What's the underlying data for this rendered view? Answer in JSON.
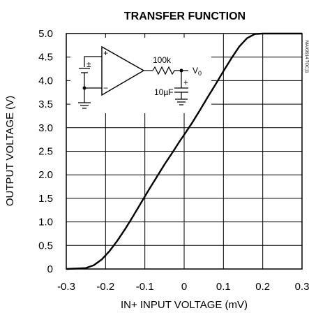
{
  "chart_data": {
    "type": "line",
    "title": "TRANSFER FUNCTION",
    "xlabel": "IN+ INPUT VOLTAGE (mV)",
    "ylabel": "OUTPUT VOLTAGE (V)",
    "xlim": [
      -0.3,
      0.3
    ],
    "ylim": [
      0,
      5.0
    ],
    "grid": true,
    "x_ticks": [
      -0.3,
      -0.2,
      -0.1,
      0,
      0.1,
      0.2,
      0.3
    ],
    "x_tick_labels": [
      "-0.3",
      "-0.2",
      "-0.1",
      "0",
      "0.1",
      "0.2",
      "0.3"
    ],
    "y_ticks": [
      0,
      0.5,
      1.0,
      1.5,
      2.0,
      2.5,
      3.0,
      3.5,
      4.0,
      4.5,
      5.0
    ],
    "y_tick_labels": [
      "0",
      "0.5",
      "1.0",
      "1.5",
      "2.0",
      "2.5",
      "3.0",
      "3.5",
      "4.0",
      "4.5",
      "5.0"
    ],
    "series": [
      {
        "x": [
          -0.3,
          -0.25,
          -0.23,
          -0.21,
          -0.19,
          -0.17,
          -0.15,
          -0.13,
          -0.11,
          -0.09,
          -0.07,
          -0.05,
          -0.03,
          -0.01,
          0.0,
          0.02,
          0.04,
          0.06,
          0.08,
          0.1,
          0.12,
          0.14,
          0.16,
          0.18,
          0.2,
          0.3
        ],
        "y": [
          0.0,
          0.02,
          0.08,
          0.2,
          0.38,
          0.6,
          0.85,
          1.12,
          1.4,
          1.68,
          1.95,
          2.22,
          2.47,
          2.73,
          2.85,
          3.1,
          3.37,
          3.65,
          3.92,
          4.2,
          4.47,
          4.72,
          4.9,
          4.99,
          5.0,
          5.0
        ]
      }
    ],
    "annotations": {
      "resistor_label": "100k",
      "output_label": "V",
      "output_subscript": "0",
      "capacitor_label": "10µF",
      "plus_sign": "+",
      "minus_sign": "−",
      "plus_sign_top": "±",
      "code": "MAX9914 TOC11"
    }
  }
}
